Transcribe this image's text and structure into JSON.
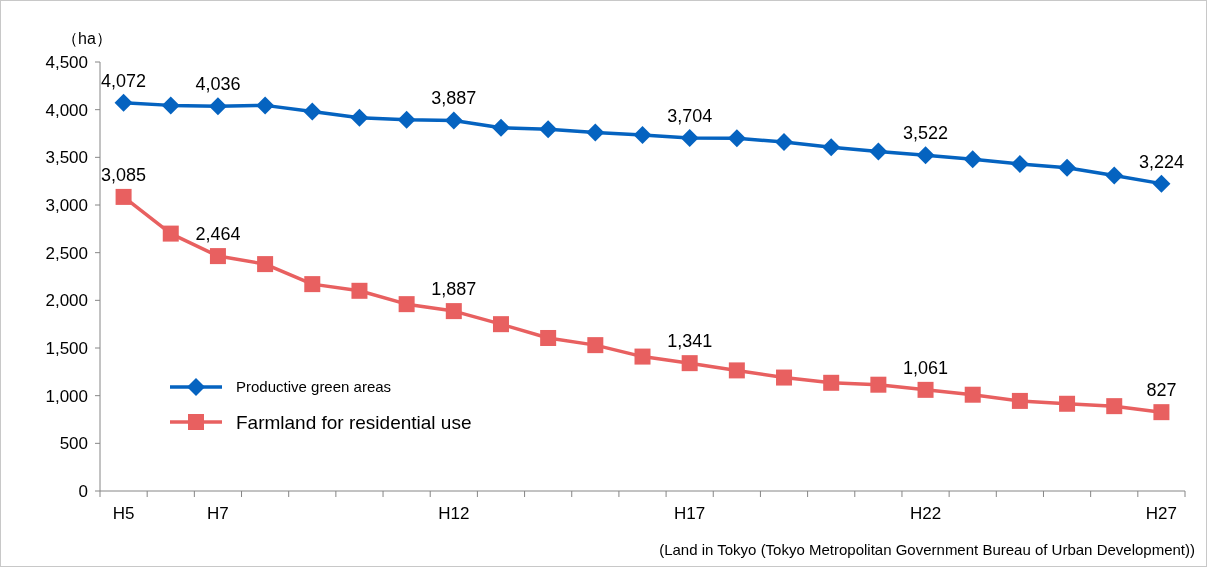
{
  "chart_data": {
    "type": "line",
    "ylabel": "（ha）",
    "categories": [
      "H5",
      null,
      "H7",
      null,
      null,
      null,
      null,
      "H12",
      null,
      null,
      null,
      null,
      "H17",
      null,
      null,
      null,
      null,
      "H22",
      null,
      null,
      null,
      null,
      "H27"
    ],
    "series": [
      {
        "name": "Productive green areas",
        "color": "#0563c0",
        "marker": "diamond",
        "values": [
          4072,
          4045,
          4036,
          4045,
          3980,
          3915,
          3895,
          3887,
          3810,
          3795,
          3760,
          3735,
          3704,
          3700,
          3660,
          3605,
          3560,
          3522,
          3480,
          3430,
          3390,
          3310,
          3224
        ],
        "value_labels": [
          "4,072",
          null,
          "4,036",
          null,
          null,
          null,
          null,
          "3,887",
          null,
          null,
          null,
          null,
          "3,704",
          null,
          null,
          null,
          null,
          "3,522",
          null,
          null,
          null,
          null,
          "3,224"
        ]
      },
      {
        "name": "Farmland for residential use",
        "color": "#e86060",
        "marker": "square",
        "values": [
          3085,
          2700,
          2464,
          2380,
          2170,
          2100,
          1960,
          1887,
          1750,
          1605,
          1530,
          1410,
          1341,
          1265,
          1190,
          1135,
          1115,
          1061,
          1010,
          945,
          915,
          890,
          827
        ],
        "value_labels": [
          "3,085",
          null,
          "2,464",
          null,
          null,
          null,
          null,
          "1,887",
          null,
          null,
          null,
          null,
          "1,341",
          null,
          null,
          null,
          null,
          "1,061",
          null,
          null,
          null,
          null,
          "827"
        ]
      }
    ],
    "ylim": [
      0,
      4500
    ],
    "yticks": [
      {
        "value": 0,
        "label": "0"
      },
      {
        "value": 500,
        "label": "500"
      },
      {
        "value": 1000,
        "label": "1,000"
      },
      {
        "value": 1500,
        "label": "1,500"
      },
      {
        "value": 2000,
        "label": "2,000"
      },
      {
        "value": 2500,
        "label": "2,500"
      },
      {
        "value": 3000,
        "label": "3,000"
      },
      {
        "value": 3500,
        "label": "3,500"
      },
      {
        "value": 4000,
        "label": "4,000"
      },
      {
        "value": 4500,
        "label": "4,500"
      }
    ],
    "grid": false,
    "legend": "bottom left",
    "line_style": "solid",
    "annotations": [
      "(Land in Tokyo (Tokyo Metropolitan Government Bureau of Urban Development))"
    ]
  }
}
